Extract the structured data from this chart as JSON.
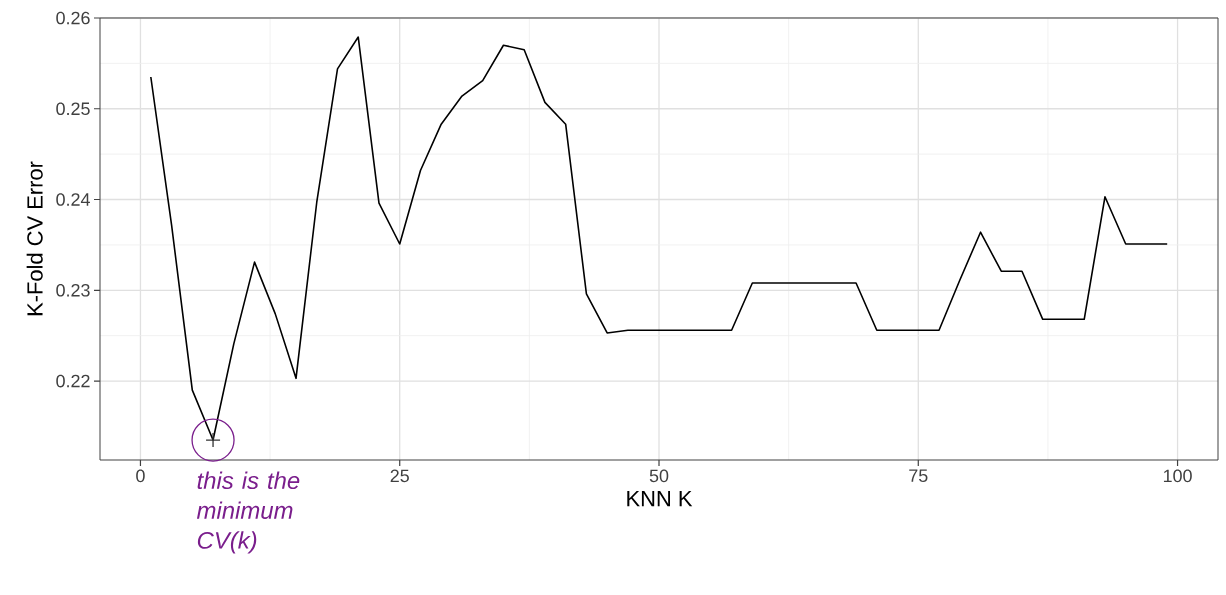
{
  "chart_data": {
    "type": "line",
    "xlabel": "KNN K",
    "ylabel": "K-Fold CV Error",
    "x": [
      1,
      3,
      5,
      7,
      9,
      11,
      13,
      15,
      17,
      19,
      21,
      23,
      25,
      27,
      29,
      31,
      33,
      35,
      37,
      39,
      41,
      43,
      45,
      47,
      49,
      51,
      53,
      55,
      57,
      59,
      61,
      63,
      65,
      67,
      69,
      71,
      73,
      75,
      77,
      79,
      81,
      83,
      85,
      87,
      89,
      91,
      93,
      95,
      97,
      99
    ],
    "series": [
      {
        "color": "#000000",
        "values": [
          0.2535,
          0.2372,
          0.219,
          0.2135,
          0.2241,
          0.2331,
          0.2274,
          0.2203,
          0.2397,
          0.2544,
          0.2579,
          0.2396,
          0.2351,
          0.2432,
          0.2483,
          0.2514,
          0.2531,
          0.257,
          0.2565,
          0.2507,
          0.2483,
          0.2296,
          0.2253,
          0.2256,
          0.2256,
          0.2256,
          0.2256,
          0.2256,
          0.2256,
          0.2308,
          0.2308,
          0.2308,
          0.2308,
          0.2308,
          0.2308,
          0.2256,
          0.2256,
          0.2256,
          0.2256,
          0.2311,
          0.2364,
          0.2321,
          0.2321,
          0.2268,
          0.2268,
          0.2268,
          0.2403,
          0.2351,
          0.2351,
          0.2351
        ]
      },
      {
        "type": "scatter",
        "color": "#333333",
        "marker": "cross",
        "x": [
          7
        ],
        "values": [
          0.2135
        ]
      }
    ],
    "annotations": [
      {
        "text": "this is the minimum CV(k)",
        "x": 7,
        "y": 0.2135
      }
    ],
    "xlim": [
      -3.9,
      103.9
    ],
    "ylim": [
      0.2113,
      0.26
    ],
    "xticks": [
      0,
      25,
      50,
      75,
      100
    ],
    "yticks": [
      0.22,
      0.23,
      0.24,
      0.25,
      0.26
    ],
    "grid": true,
    "line_style": "solid"
  }
}
